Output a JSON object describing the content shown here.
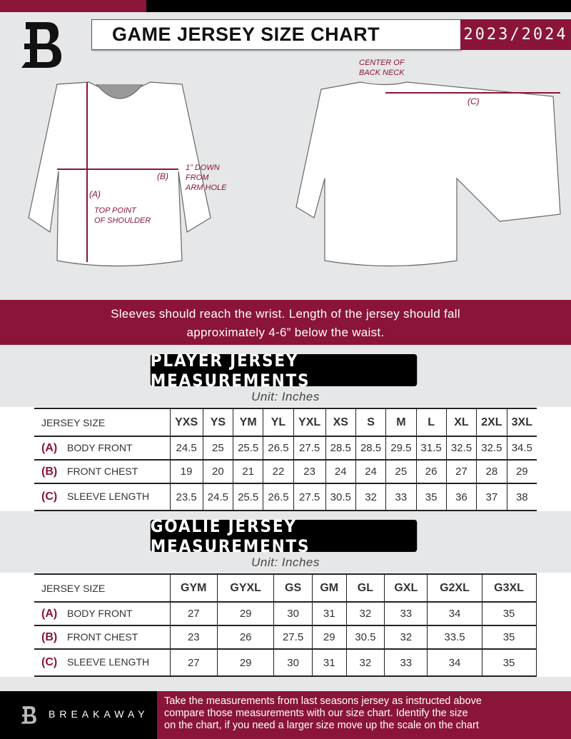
{
  "header": {
    "title": "GAME JERSEY SIZE CHART",
    "season": "2023/2024"
  },
  "diagram": {
    "front_label_a": "(A)",
    "front_label_b": "(B)",
    "back_label_c": "(C)",
    "top_point_note": [
      "TOP POINT",
      "OF SHOULDER"
    ],
    "arm_hole_note": [
      "1” DOWN",
      "FROM",
      "ARM HOLE"
    ],
    "back_neck_note": [
      "CENTER OF",
      "BACK NECK"
    ]
  },
  "instructions": [
    "Sleeves should reach the wrist. Length of the jersey should fall",
    "approximately 4-6” below the waist."
  ],
  "player": {
    "heading": "PLAYER JERSEY MEASUREMENTS",
    "unit": "Unit: Inches",
    "size_label": "JERSEY SIZE",
    "sizes": [
      "YXS",
      "YS",
      "YM",
      "YL",
      "YXL",
      "XS",
      "S",
      "M",
      "L",
      "XL",
      "2XL",
      "3XL"
    ],
    "rows": [
      {
        "letter": "(A)",
        "label": "BODY FRONT",
        "values": [
          "24.5",
          "25",
          "25.5",
          "26.5",
          "27.5",
          "28.5",
          "28.5",
          "29.5",
          "31.5",
          "32.5",
          "32.5",
          "34.5"
        ]
      },
      {
        "letter": "(B)",
        "label": "FRONT CHEST",
        "values": [
          "19",
          "20",
          "21",
          "22",
          "23",
          "24",
          "24",
          "25",
          "26",
          "27",
          "28",
          "29"
        ]
      },
      {
        "letter": "(C)",
        "label": "SLEEVE LENGTH",
        "values": [
          "23.5",
          "24.5",
          "25.5",
          "26.5",
          "27.5",
          "30.5",
          "32",
          "33",
          "35",
          "36",
          "37",
          "38"
        ]
      }
    ]
  },
  "goalie": {
    "heading": "GOALIE JERSEY MEASUREMENTS",
    "unit": "Unit: Inches",
    "size_label": "JERSEY SIZE",
    "sizes": [
      "GYM",
      "GYXL",
      "GS",
      "GM",
      "GL",
      "GXL",
      "G2XL",
      "G3XL",
      ""
    ],
    "rows": [
      {
        "letter": "(A)",
        "label": "BODY FRONT",
        "values": [
          "27",
          "29",
          "30",
          "31",
          "32",
          "33",
          "34",
          "35",
          ""
        ]
      },
      {
        "letter": "(B)",
        "label": "FRONT CHEST",
        "values": [
          "23",
          "26",
          "27.5",
          "29",
          "30.5",
          "32",
          "33.5",
          "35",
          ""
        ]
      },
      {
        "letter": "(C)",
        "label": "SLEEVE LENGTH",
        "values": [
          "27",
          "29",
          "30",
          "31",
          "32",
          "33",
          "34",
          "35",
          ""
        ]
      }
    ]
  },
  "footer": {
    "brand": "BREAKAWAY",
    "text": [
      "Take the measurements from last seasons jersey as instructed above",
      "compare those measurements  with our size chart. Identify the size",
      "on the chart, if you need a larger size move up the scale on the chart"
    ]
  },
  "colors": {
    "accent": "#8a1538",
    "dark": "#000000",
    "background": "#e6e7e8"
  }
}
